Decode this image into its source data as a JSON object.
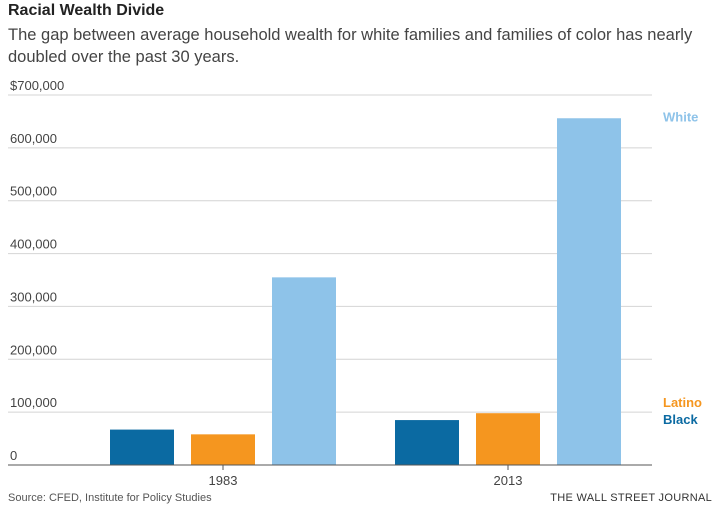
{
  "header": {
    "title": "Racial Wealth Divide",
    "subtitle": "The gap between average household wealth for white families and families of color has nearly doubled over the past 30 years."
  },
  "footer": {
    "source": "Source: CFED, Institute for Policy Studies",
    "brand": "THE WALL STREET JOURNAL"
  },
  "chart_data": {
    "type": "bar",
    "title": "Racial Wealth Divide",
    "categories": [
      "1983",
      "2013"
    ],
    "series": [
      {
        "name": "Black",
        "color": "#0b6aa2",
        "values": [
          67000,
          85000
        ]
      },
      {
        "name": "Latino",
        "color": "#f5961f",
        "values": [
          58000,
          98000
        ]
      },
      {
        "name": "White",
        "color": "#8ec3e9",
        "values": [
          355000,
          656000
        ]
      }
    ],
    "ylim": [
      0,
      700000
    ],
    "yticks": [
      {
        "value": 0,
        "label": "0"
      },
      {
        "value": 100000,
        "label": "100,000"
      },
      {
        "value": 200000,
        "label": "200,000"
      },
      {
        "value": 300000,
        "label": "300,000"
      },
      {
        "value": 400000,
        "label": "400,000"
      },
      {
        "value": 500000,
        "label": "500,000"
      },
      {
        "value": 600000,
        "label": "600,000"
      },
      {
        "value": 700000,
        "label": "$700,000"
      }
    ],
    "xlabel": "",
    "ylabel": "",
    "grid": true,
    "legend": "right, next to 2013 bars"
  }
}
